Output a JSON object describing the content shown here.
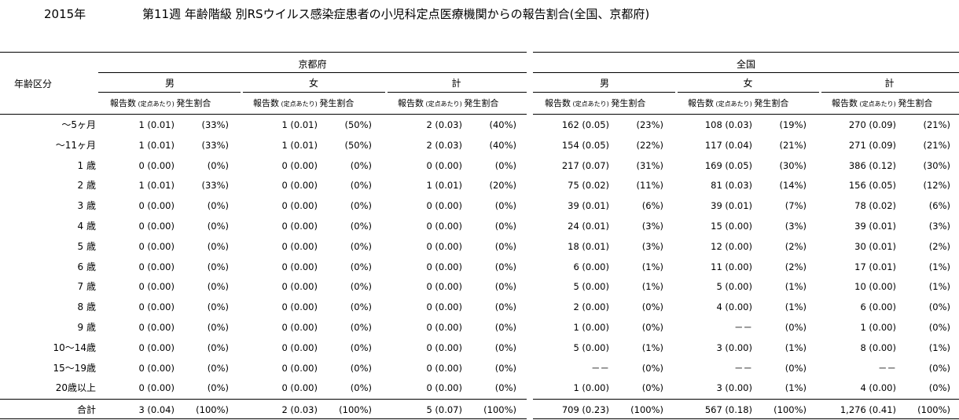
{
  "header": {
    "year": "2015年",
    "title": "第11週 年齢階級 別RSウイルス感染症患者の小児科定点医療機関からの報告割合(全国、京都府)"
  },
  "table": {
    "age_header": "年齢区分",
    "regions": [
      "京都府",
      "全国"
    ],
    "sexes": [
      "男",
      "女",
      "計"
    ],
    "sub_headers": {
      "count": "報告数",
      "per": "(定点あたり)",
      "ratio": "発生割合"
    },
    "rows": [
      {
        "label": "～5ヶ月",
        "cells": [
          [
            "1 (0.01)",
            "(33%)"
          ],
          [
            "1 (0.01)",
            "(50%)"
          ],
          [
            "2 (0.03)",
            "(40%)"
          ],
          [
            "162 (0.05)",
            "(23%)"
          ],
          [
            "108 (0.03)",
            "(19%)"
          ],
          [
            "270 (0.09)",
            "(21%)"
          ]
        ]
      },
      {
        "label": "～11ヶ月",
        "cells": [
          [
            "1 (0.01)",
            "(33%)"
          ],
          [
            "1 (0.01)",
            "(50%)"
          ],
          [
            "2 (0.03)",
            "(40%)"
          ],
          [
            "154 (0.05)",
            "(22%)"
          ],
          [
            "117 (0.04)",
            "(21%)"
          ],
          [
            "271 (0.09)",
            "(21%)"
          ]
        ]
      },
      {
        "label": "1 歳",
        "cells": [
          [
            "0 (0.00)",
            "(0%)"
          ],
          [
            "0 (0.00)",
            "(0%)"
          ],
          [
            "0 (0.00)",
            "(0%)"
          ],
          [
            "217 (0.07)",
            "(31%)"
          ],
          [
            "169 (0.05)",
            "(30%)"
          ],
          [
            "386 (0.12)",
            "(30%)"
          ]
        ]
      },
      {
        "label": "2 歳",
        "cells": [
          [
            "1 (0.01)",
            "(33%)"
          ],
          [
            "0 (0.00)",
            "(0%)"
          ],
          [
            "1 (0.01)",
            "(20%)"
          ],
          [
            "75 (0.02)",
            "(11%)"
          ],
          [
            "81 (0.03)",
            "(14%)"
          ],
          [
            "156 (0.05)",
            "(12%)"
          ]
        ]
      },
      {
        "label": "3 歳",
        "cells": [
          [
            "0 (0.00)",
            "(0%)"
          ],
          [
            "0 (0.00)",
            "(0%)"
          ],
          [
            "0 (0.00)",
            "(0%)"
          ],
          [
            "39 (0.01)",
            "(6%)"
          ],
          [
            "39 (0.01)",
            "(7%)"
          ],
          [
            "78 (0.02)",
            "(6%)"
          ]
        ]
      },
      {
        "label": "4 歳",
        "cells": [
          [
            "0 (0.00)",
            "(0%)"
          ],
          [
            "0 (0.00)",
            "(0%)"
          ],
          [
            "0 (0.00)",
            "(0%)"
          ],
          [
            "24 (0.01)",
            "(3%)"
          ],
          [
            "15 (0.00)",
            "(3%)"
          ],
          [
            "39 (0.01)",
            "(3%)"
          ]
        ]
      },
      {
        "label": "5 歳",
        "cells": [
          [
            "0 (0.00)",
            "(0%)"
          ],
          [
            "0 (0.00)",
            "(0%)"
          ],
          [
            "0 (0.00)",
            "(0%)"
          ],
          [
            "18 (0.01)",
            "(3%)"
          ],
          [
            "12 (0.00)",
            "(2%)"
          ],
          [
            "30 (0.01)",
            "(2%)"
          ]
        ]
      },
      {
        "label": "6 歳",
        "cells": [
          [
            "0 (0.00)",
            "(0%)"
          ],
          [
            "0 (0.00)",
            "(0%)"
          ],
          [
            "0 (0.00)",
            "(0%)"
          ],
          [
            "6 (0.00)",
            "(1%)"
          ],
          [
            "11 (0.00)",
            "(2%)"
          ],
          [
            "17 (0.01)",
            "(1%)"
          ]
        ]
      },
      {
        "label": "7 歳",
        "cells": [
          [
            "0 (0.00)",
            "(0%)"
          ],
          [
            "0 (0.00)",
            "(0%)"
          ],
          [
            "0 (0.00)",
            "(0%)"
          ],
          [
            "5 (0.00)",
            "(1%)"
          ],
          [
            "5 (0.00)",
            "(1%)"
          ],
          [
            "10 (0.00)",
            "(1%)"
          ]
        ]
      },
      {
        "label": "8 歳",
        "cells": [
          [
            "0 (0.00)",
            "(0%)"
          ],
          [
            "0 (0.00)",
            "(0%)"
          ],
          [
            "0 (0.00)",
            "(0%)"
          ],
          [
            "2 (0.00)",
            "(0%)"
          ],
          [
            "4 (0.00)",
            "(1%)"
          ],
          [
            "6 (0.00)",
            "(0%)"
          ]
        ]
      },
      {
        "label": "9 歳",
        "cells": [
          [
            "0 (0.00)",
            "(0%)"
          ],
          [
            "0 (0.00)",
            "(0%)"
          ],
          [
            "0 (0.00)",
            "(0%)"
          ],
          [
            "1 (0.00)",
            "(0%)"
          ],
          [
            "－－",
            "(0%)"
          ],
          [
            "1 (0.00)",
            "(0%)"
          ]
        ]
      },
      {
        "label": "10～14歳",
        "cells": [
          [
            "0 (0.00)",
            "(0%)"
          ],
          [
            "0 (0.00)",
            "(0%)"
          ],
          [
            "0 (0.00)",
            "(0%)"
          ],
          [
            "5 (0.00)",
            "(1%)"
          ],
          [
            "3 (0.00)",
            "(1%)"
          ],
          [
            "8 (0.00)",
            "(1%)"
          ]
        ]
      },
      {
        "label": "15～19歳",
        "cells": [
          [
            "0 (0.00)",
            "(0%)"
          ],
          [
            "0 (0.00)",
            "(0%)"
          ],
          [
            "0 (0.00)",
            "(0%)"
          ],
          [
            "－－",
            "(0%)"
          ],
          [
            "－－",
            "(0%)"
          ],
          [
            "－－",
            "(0%)"
          ]
        ]
      },
      {
        "label": "20歳以上",
        "cells": [
          [
            "0 (0.00)",
            "(0%)"
          ],
          [
            "0 (0.00)",
            "(0%)"
          ],
          [
            "0 (0.00)",
            "(0%)"
          ],
          [
            "1 (0.00)",
            "(0%)"
          ],
          [
            "3 (0.00)",
            "(1%)"
          ],
          [
            "4 (0.00)",
            "(0%)"
          ]
        ]
      }
    ],
    "total": {
      "label": "合計",
      "cells": [
        [
          "3 (0.04)",
          "(100%)"
        ],
        [
          "2 (0.03)",
          "(100%)"
        ],
        [
          "5 (0.07)",
          "(100%)"
        ],
        [
          "709 (0.23)",
          "(100%)"
        ],
        [
          "567 (0.18)",
          "(100%)"
        ],
        [
          "1,276 (0.41)",
          "(100%)"
        ]
      ]
    }
  }
}
